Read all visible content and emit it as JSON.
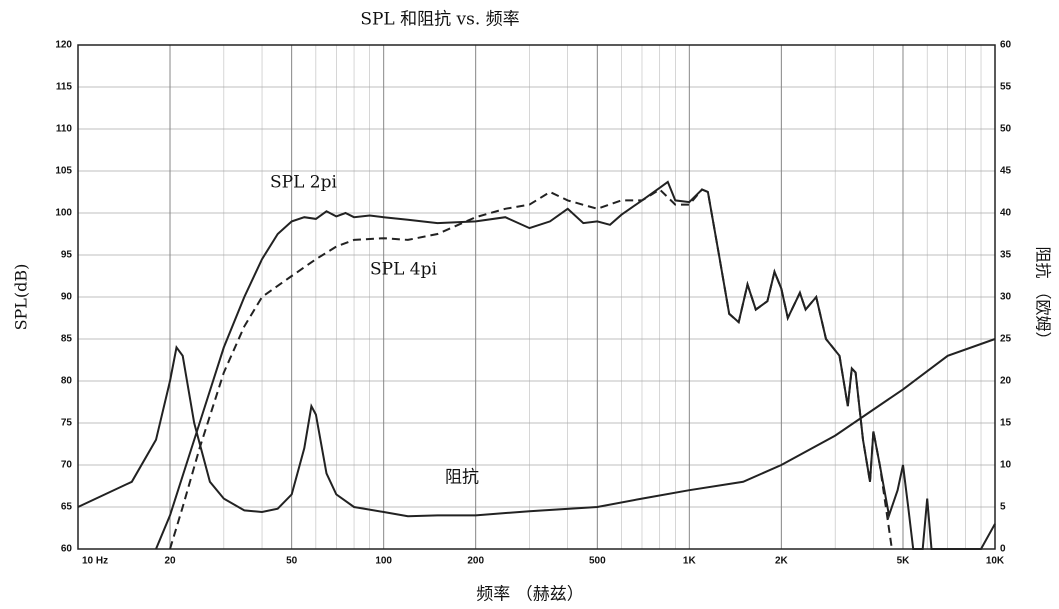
{
  "chart_data": {
    "type": "line",
    "title": "SPL 和阻抗 vs. 频率",
    "x_label": "频率 （赫兹）",
    "y_label": "SPL(dB)",
    "y2_label": "阻抗 （欧姆）",
    "xscale": "log",
    "xlim": [
      10,
      10000
    ],
    "xticks": [
      {
        "value": 10,
        "label": "10 Hz"
      },
      20,
      50,
      100,
      200,
      500,
      {
        "value": 1000,
        "label": "1K"
      },
      {
        "value": 2000,
        "label": "2K"
      },
      {
        "value": 5000,
        "label": "5K"
      },
      {
        "value": 10000,
        "label": "10K"
      }
    ],
    "ylim": [
      60,
      120
    ],
    "yticks": [
      60,
      65,
      70,
      75,
      80,
      85,
      90,
      95,
      100,
      105,
      110,
      115,
      120
    ],
    "y2lim": [
      0,
      60
    ],
    "y2ticks": [
      0,
      5,
      10,
      15,
      20,
      25,
      30,
      35,
      40,
      45,
      50,
      55,
      60
    ],
    "grid": true,
    "series": [
      {
        "name": "SPL 2pi",
        "color": "#222",
        "dash": false,
        "x": [
          18,
          20,
          25,
          30,
          35,
          40,
          45,
          50,
          55,
          60,
          65,
          70,
          75,
          80,
          90,
          100,
          120,
          150,
          200,
          250,
          300,
          350,
          400,
          450,
          500,
          550,
          600,
          700,
          800,
          850,
          900,
          1000,
          1100,
          1150,
          1250,
          1350,
          1450,
          1550,
          1650,
          1800,
          1900,
          2000,
          2100,
          2300,
          2400,
          2600,
          2800,
          3100,
          3300,
          3400,
          3500,
          3700,
          3900,
          4000,
          4200,
          4500,
          4800,
          5000,
          5200,
          5400,
          5800,
          6000,
          6200,
          9000,
          10000
        ],
        "values": [
          60,
          64,
          75,
          84,
          90,
          94.5,
          97.5,
          99,
          99.5,
          99.3,
          100.2,
          99.6,
          100,
          99.5,
          99.7,
          99.5,
          99.2,
          98.8,
          99,
          99.5,
          98.2,
          99,
          100.5,
          98.8,
          99,
          98.6,
          99.8,
          101.5,
          103,
          103.7,
          101.5,
          101.3,
          102.8,
          102.5,
          95,
          88,
          87,
          91.5,
          88.5,
          89.5,
          93,
          91,
          87.5,
          90.5,
          88.5,
          90,
          85,
          83,
          77,
          81.5,
          81,
          73,
          68,
          74,
          70,
          64,
          67,
          70,
          65,
          60,
          60,
          66,
          60,
          60,
          63
        ]
      },
      {
        "name": "SPL 4pi",
        "color": "#222",
        "dash": true,
        "x": [
          20,
          22,
          25,
          30,
          35,
          40,
          50,
          60,
          70,
          80,
          100,
          120,
          150,
          200,
          250,
          300,
          350,
          400,
          500,
          600,
          700,
          800,
          900,
          1000,
          1100,
          1150,
          1250,
          1350,
          1450,
          1550,
          1650,
          1800,
          1900,
          2000,
          2100,
          2300,
          2400,
          2600,
          2800,
          3100,
          3300,
          3400,
          3500,
          3700,
          3900,
          4000,
          4200,
          4600
        ],
        "values": [
          60,
          65,
          72,
          81,
          86.5,
          90,
          92.5,
          94.5,
          96,
          96.8,
          97,
          96.8,
          97.5,
          99.5,
          100.5,
          101,
          102.5,
          101.5,
          100.5,
          101.5,
          101.5,
          102.8,
          101,
          101,
          102.8,
          102.5,
          95,
          88,
          87,
          91.5,
          88.5,
          89.5,
          93,
          91,
          87.5,
          90.5,
          88.5,
          90,
          85,
          83,
          77,
          81.5,
          81,
          73,
          68,
          74,
          70,
          60
        ]
      },
      {
        "name": "阻抗",
        "color": "#222",
        "dash": false,
        "axis": "y2",
        "x": [
          10,
          15,
          18,
          20,
          21,
          22,
          24,
          27,
          30,
          35,
          40,
          45,
          50,
          55,
          58,
          60,
          65,
          70,
          80,
          100,
          120,
          150,
          200,
          300,
          500,
          700,
          1000,
          1500,
          2000,
          3000,
          5000,
          7000,
          10000
        ],
        "values": [
          5,
          8,
          13,
          20,
          24,
          23,
          15,
          8,
          6,
          4.6,
          4.4,
          4.8,
          6.5,
          12,
          17,
          16,
          9,
          6.5,
          5,
          4.4,
          3.9,
          4,
          4,
          4.5,
          5,
          6,
          7,
          8,
          10,
          13.5,
          19,
          23,
          25
        ]
      }
    ]
  }
}
